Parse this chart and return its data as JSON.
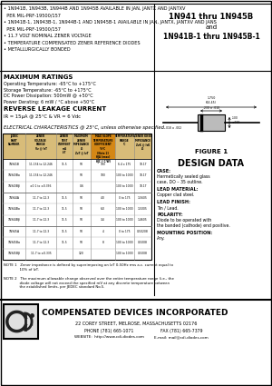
{
  "title_left_lines": [
    "• 1N941B, 1N943B, 1N944B AND 1N945B AVAILABLE IN JAN, JANTX AND JANTXV",
    "  PER MIL-PRF-19500/157",
    "• 1N941B-1, 1N943B-1, 1N944B-1 AND 1N945B-1 AVAILABLE IN JAN, JANTX, JANTXV AND JANS",
    "  PER MIL-PRF-19500/157",
    "• 11.7 VOLT NOMINAL ZENER VOLTAGE",
    "• TEMPERATURE COMPENSATED ZENER REFERENCE DIODES",
    "• METALLURGICALLY BONDED"
  ],
  "title_right_line1": "1N941 thru 1N945B",
  "title_right_line2": "and",
  "title_right_line3": "1N941B-1 thru 1N945B-1",
  "max_ratings_title": "MAXIMUM RATINGS",
  "max_ratings": [
    "Operating Temperature: -65°C to +175°C",
    "Storage Temperature: -65°C to +175°C",
    "DC Power Dissipation: 500mW @ +50°C",
    "Power Derating: 6 mW / °C above +50°C"
  ],
  "reverse_leakage_title": "REVERSE LEAKAGE CURRENT",
  "reverse_leakage": "IR = 15μA @ 25°C & VR = 6 Vdc",
  "elec_char_title": "ELECTRICAL CHARACTERISTICS @ 25°C, unless otherwise specified.",
  "col_headers": [
    "JEDEC\nPART\nNUMBER",
    "ZENER\nVOLTAGE\nRANGE\nVz @ IzT",
    "ZENER\nTEST\nCURRENT\nmA\nIzT",
    "MAXIMUM\nZENER\nIMPEDANCE\nΩ\nZzT @ IzT",
    "MAX SLOPE\nTEMPERATURE\nCOEFFICIENT\n%/°C\n(Note 2)\nθJA (max)\nθJC (°C/W)",
    "TEMPERATURE\nRANGE\n°C",
    "ZENER KNEE\nIMPEDANCE\nZzK @ IzK\nΩ"
  ],
  "row_data": [
    [
      "1N941B",
      "11.154 to 12.246",
      "11.5",
      "50",
      "100",
      "6.4 x 175",
      "18.17"
    ],
    [
      "1N943Bα",
      "11.154 to 12.246",
      "",
      "50",
      "100",
      "100 to 1000",
      "18.17"
    ],
    [
      "1N943Bβ",
      "±0.1 to ±0.336",
      "",
      "0.6",
      "",
      "100 to 1000",
      "18.17"
    ],
    [
      "1N944A",
      "11.7 to 12.3",
      "11.5",
      "50",
      "4.0",
      "0 to 175",
      "1.5605"
    ],
    [
      "1N944Bα",
      "11.7 to 12.3",
      "11.5",
      "50",
      "6.0",
      "100 to 1000",
      "1.5005"
    ],
    [
      "1N944Bβ",
      "11.7 to 12.3",
      "11.5",
      "50",
      "3/4",
      "100 to 1000",
      "1.4605"
    ],
    [
      "1N945A",
      "11.7 to 12.3",
      "11.5",
      "50",
      "4",
      "0 to 175",
      "0.50208"
    ],
    [
      "1N945Bα",
      "11.7 to 12.3",
      "11.5",
      "50",
      "8",
      "100 to 1000",
      "0.5008"
    ],
    [
      "1N945Bβ",
      "11.7 to ±0.335",
      "",
      "120",
      "",
      "100 to 1000",
      "0.5008"
    ]
  ],
  "note1": "NOTE 1   Zener impedance is defined by superimposing on IzT 0-50Hz rms a.c. current equal to\n              10% of IzT.",
  "note2": "NOTE 2   The maximum allowable change observed over the entire temperature range (i.e., the\n              diode voltage will not exceed the specified mV at any discrete temperature between\n              the established limits, per JEDEC standard No.5.",
  "figure1_label": "FIGURE 1",
  "design_data_title": "DESIGN DATA",
  "design_items": [
    [
      "CASE:",
      "Hermetically sealed glass\ncase, DO – 35 outline."
    ],
    [
      "LEAD MATERIAL:",
      "Copper clad steel."
    ],
    [
      "LEAD FINISH:",
      "Tin / Lead."
    ],
    [
      "POLARITY:",
      "Diode to be operated with\nthe banded (cathode) end positive."
    ],
    [
      "MOUNTING POSITION:",
      "Any."
    ]
  ],
  "company_name": "COMPENSATED DEVICES INCORPORATED",
  "company_address": "22 COREY STREET, MELROSE, MASSACHUSETTS 02176",
  "company_phone": "PHONE (781) 665-1071",
  "company_fax": "FAX (781) 665-7379",
  "company_website": "WEBSITE:  http://www.cdi-diodes.com",
  "company_email": "E-mail: mail@cdi-diodes.com",
  "bg_color": "#ffffff",
  "divider_color": "#000000",
  "table_header_bg": "#c8a040",
  "table_header_highlight": "#d4820a"
}
